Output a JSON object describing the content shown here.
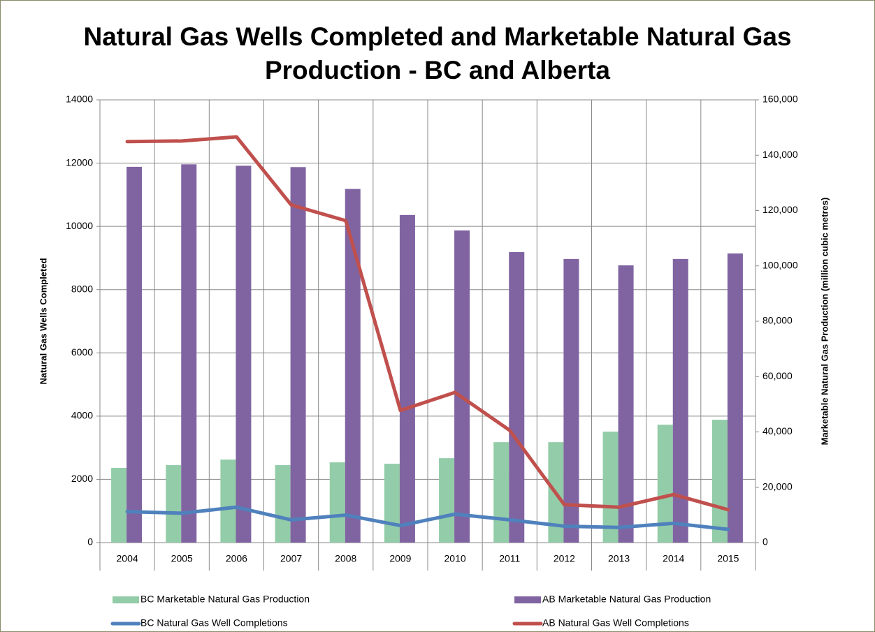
{
  "chart_data": {
    "type": "bar",
    "title": "Natural Gas Wells Completed and Marketable Natural Gas Production - BC and Alberta",
    "y_label": "Natural Gas Wells Completed",
    "y2_label": "Marketable Natural Gas Production (million cubic metres)",
    "categories": [
      "2004",
      "2005",
      "2006",
      "2007",
      "2008",
      "2009",
      "2010",
      "2011",
      "2012",
      "2013",
      "2014",
      "2015"
    ],
    "series": [
      {
        "name": "BC Marketable Natural Gas Production",
        "type": "bar",
        "axis": "y2",
        "color": "#93cca8",
        "values": [
          27000,
          28000,
          30000,
          28000,
          29000,
          28500,
          30500,
          36300,
          36300,
          40100,
          42600,
          44400
        ]
      },
      {
        "name": "AB Marketable Natural Gas Production",
        "type": "bar",
        "axis": "y2",
        "color": "#8064a2",
        "values": [
          135800,
          136700,
          136200,
          135700,
          127800,
          118400,
          112800,
          105000,
          102500,
          100200,
          102500,
          104500
        ]
      },
      {
        "name": "BC Natural Gas Well Completions",
        "type": "line",
        "color": "#4f81bd",
        "values": [
          980,
          930,
          1120,
          720,
          870,
          540,
          900,
          720,
          520,
          480,
          610,
          420
        ]
      },
      {
        "name": "AB Natural Gas Well Completions",
        "type": "line",
        "color": "#c0504d",
        "values": [
          12680,
          12700,
          12830,
          10680,
          10180,
          4180,
          4750,
          3550,
          1200,
          1120,
          1520,
          1040
        ]
      }
    ],
    "ylim": [
      0,
      14000
    ],
    "yticks": [
      0,
      2000,
      4000,
      6000,
      8000,
      10000,
      12000,
      14000
    ],
    "y2lim": [
      0,
      160000
    ],
    "y2ticks": [
      0,
      {
        "value": 20000,
        "label": "20,000"
      },
      {
        "value": 40000,
        "label": "40,000"
      },
      {
        "value": 60000,
        "label": "60,000"
      },
      {
        "value": 80000,
        "label": "80,000"
      },
      {
        "value": 100000,
        "label": "100,000"
      },
      {
        "value": 120000,
        "label": "120,000"
      },
      {
        "value": 140000,
        "label": "140,000"
      },
      {
        "value": 160000,
        "label": "160,000"
      }
    ],
    "grid": true,
    "legend": "bottom"
  }
}
